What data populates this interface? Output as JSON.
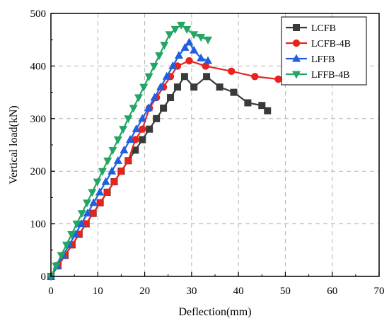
{
  "chart_data": {
    "type": "line",
    "title": "",
    "xlabel": "Deflection(mm)",
    "ylabel": "Vertical load(kN)",
    "xlim": [
      0,
      70
    ],
    "ylim": [
      0,
      500
    ],
    "xticks": [
      "0",
      "10",
      "20",
      "30",
      "40",
      "50",
      "60",
      "70"
    ],
    "yticks": [
      "0",
      "100",
      "200",
      "300",
      "400",
      "500"
    ],
    "grid": true,
    "legend_position": "top-right",
    "series": [
      {
        "name": "LCFB",
        "color": "#3a3a3a",
        "marker": "square",
        "x": [
          0,
          1.5,
          3,
          4.5,
          6,
          7.5,
          9,
          10.5,
          12,
          13.5,
          15,
          16.5,
          18,
          19.5,
          21,
          22.5,
          24,
          25.5,
          27,
          28.5,
          30.5,
          33.2,
          36,
          39,
          42,
          45,
          46.2
        ],
        "y": [
          0,
          20,
          40,
          60,
          80,
          100,
          120,
          140,
          160,
          180,
          200,
          220,
          240,
          260,
          280,
          300,
          320,
          340,
          360,
          380,
          360,
          380,
          360,
          350,
          330,
          325,
          315
        ]
      },
      {
        "name": "LCFB-4B",
        "color": "#e8231c",
        "marker": "circle",
        "x": [
          0,
          1.5,
          3,
          4.5,
          6,
          7.5,
          9,
          10.5,
          12,
          13.5,
          15,
          16.5,
          18,
          19.5,
          21,
          22.5,
          24,
          25.5,
          27,
          29.5,
          33,
          38.5,
          43.5,
          48.5
        ],
        "y": [
          0,
          20,
          40,
          60,
          80,
          100,
          120,
          140,
          160,
          180,
          200,
          220,
          260,
          280,
          320,
          340,
          360,
          380,
          400,
          410,
          400,
          390,
          380,
          375
        ]
      },
      {
        "name": "LFFB",
        "color": "#1f5fe0",
        "marker": "triangle-up",
        "x": [
          0,
          1.3,
          2.6,
          3.9,
          5.2,
          6.5,
          7.8,
          9.1,
          10.4,
          11.7,
          13,
          14.3,
          15.6,
          16.9,
          18.2,
          19.5,
          20.8,
          22.1,
          23.4,
          24.7,
          26,
          27.3,
          28.6,
          29.5,
          30.5,
          32,
          33.5
        ],
        "y": [
          0,
          20,
          40,
          60,
          80,
          100,
          120,
          140,
          160,
          180,
          200,
          220,
          240,
          260,
          280,
          300,
          320,
          340,
          360,
          380,
          400,
          420,
          435,
          445,
          430,
          415,
          410
        ]
      },
      {
        "name": "LFFB-4B",
        "color": "#22a565",
        "marker": "triangle-down",
        "x": [
          0,
          1.1,
          2.2,
          3.3,
          4.4,
          5.5,
          6.6,
          7.7,
          8.8,
          9.9,
          11,
          12.1,
          13.2,
          14.3,
          15.4,
          16.5,
          17.6,
          18.7,
          19.8,
          20.9,
          22,
          23.1,
          24.2,
          25.3,
          26.5,
          27.8,
          29,
          30.5,
          32,
          33.5
        ],
        "y": [
          0,
          20,
          40,
          60,
          80,
          100,
          120,
          140,
          160,
          180,
          200,
          220,
          240,
          260,
          280,
          300,
          320,
          340,
          360,
          380,
          400,
          420,
          440,
          460,
          470,
          478,
          470,
          460,
          455,
          450
        ]
      }
    ]
  }
}
